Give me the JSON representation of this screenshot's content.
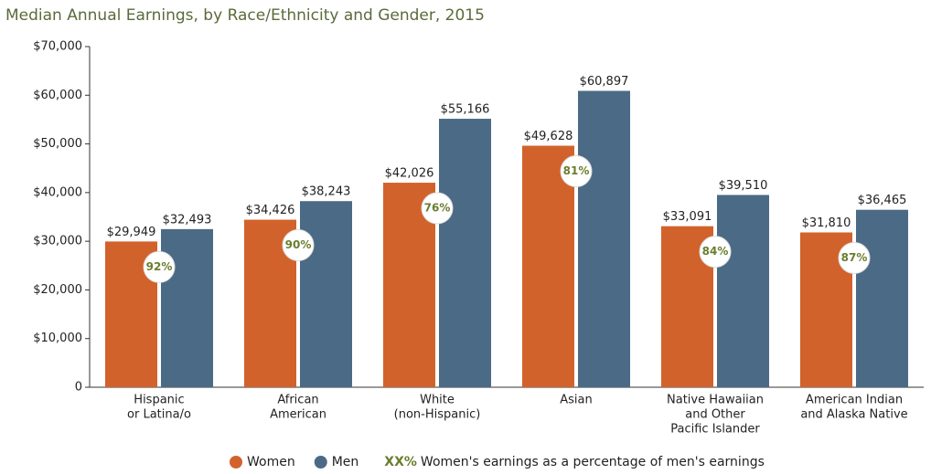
{
  "chart_data": {
    "type": "bar",
    "title": "Median Annual Earnings, by Race/Ethnicity and Gender, 2015",
    "categories": [
      [
        "Hispanic",
        "or Latina/o"
      ],
      [
        "African",
        "American"
      ],
      [
        "White",
        "(non-Hispanic)"
      ],
      [
        "Asian"
      ],
      [
        "Native Hawaiian",
        "and Other",
        "Pacific Islander"
      ],
      [
        "American Indian",
        "and Alaska Native"
      ]
    ],
    "series": [
      {
        "name": "Women",
        "color": "#d2622b",
        "values": [
          29949,
          34426,
          42026,
          49628,
          33091,
          31810
        ],
        "value_labels": [
          "$29,949",
          "$34,426",
          "$42,026",
          "$49,628",
          "$33,091",
          "$31,810"
        ]
      },
      {
        "name": "Men",
        "color": "#4b6a86",
        "values": [
          32493,
          38243,
          55166,
          60897,
          39510,
          36465
        ],
        "value_labels": [
          "$32,493",
          "$38,243",
          "$55,166",
          "$60,897",
          "$39,510",
          "$36,465"
        ]
      }
    ],
    "percent_of_men": {
      "values": [
        92,
        90,
        76,
        81,
        84,
        87
      ],
      "value_labels": [
        "92%",
        "90%",
        "76%",
        "81%",
        "84%",
        "87%"
      ],
      "color": "#6b7d2e"
    },
    "percent_legend": {
      "symbol": "XX%",
      "text": "Women's earnings as a percentage of men's earnings"
    },
    "ylim": [
      0,
      70000
    ],
    "yticks": [
      0,
      {
        "value": 10000,
        "label": "$10,000"
      },
      {
        "value": 20000,
        "label": "$20,000"
      },
      {
        "value": 30000,
        "label": "$30,000"
      },
      {
        "value": 40000,
        "label": "$40,000"
      },
      {
        "value": 50000,
        "label": "$50,000"
      },
      {
        "value": 60000,
        "label": "$60,000"
      },
      {
        "value": 70000,
        "label": "$70,000"
      }
    ],
    "grid": false
  }
}
